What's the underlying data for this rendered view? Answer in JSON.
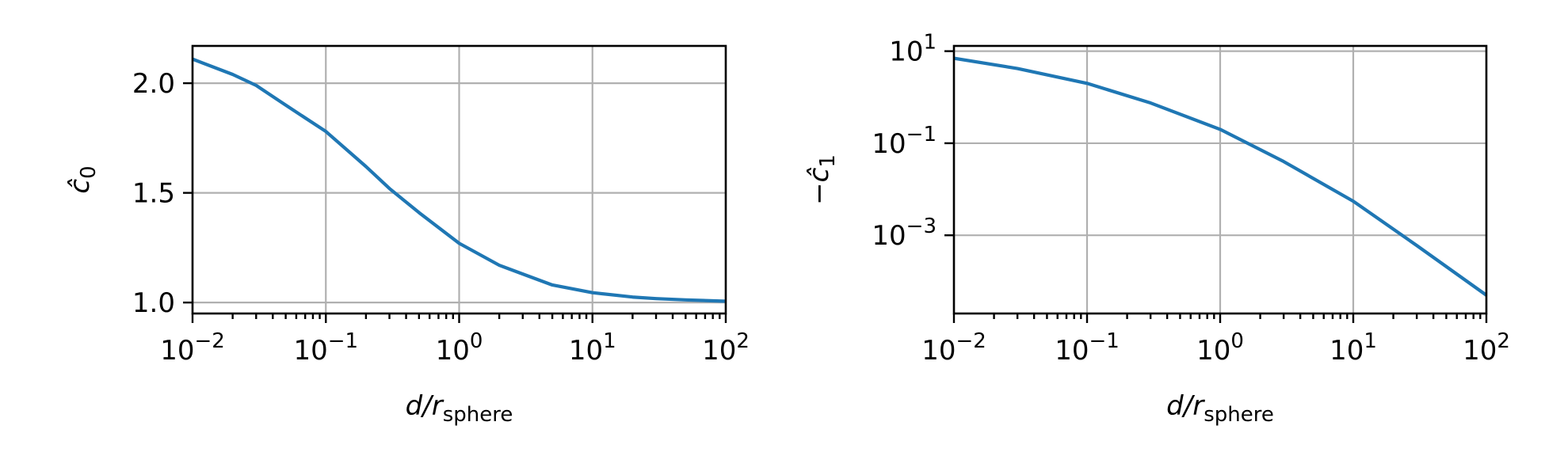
{
  "colors": {
    "series": "#1f77b4",
    "grid": "#b0b0b0",
    "frame": "#000000"
  },
  "chart_data": [
    {
      "type": "line",
      "xscale": "log",
      "yscale": "linear",
      "xlim": [
        0.01,
        100
      ],
      "ylim": [
        0.95,
        2.17
      ],
      "grid": true,
      "xlabel": {
        "base": "d/r",
        "sub": "sphere"
      },
      "ylabel": {
        "base": "ĉ",
        "sub": "0",
        "prefix": ""
      },
      "xticks": [
        {
          "value": 0.01,
          "base": "10",
          "exp": "−2"
        },
        {
          "value": 0.1,
          "base": "10",
          "exp": "−1"
        },
        {
          "value": 1,
          "base": "10",
          "exp": "0"
        },
        {
          "value": 10,
          "base": "10",
          "exp": "1"
        },
        {
          "value": 100,
          "base": "10",
          "exp": "2"
        }
      ],
      "yticks": [
        {
          "value": 1.0,
          "label": "1.0"
        },
        {
          "value": 1.5,
          "label": "1.5"
        },
        {
          "value": 2.0,
          "label": "2.0"
        }
      ],
      "series": [
        {
          "x": [
            0.01,
            0.02,
            0.03,
            0.05,
            0.1,
            0.2,
            0.3,
            0.5,
            1,
            2,
            3,
            5,
            10,
            20,
            30,
            50,
            100
          ],
          "y": [
            2.11,
            2.04,
            1.99,
            1.9,
            1.78,
            1.62,
            1.52,
            1.41,
            1.27,
            1.17,
            1.13,
            1.08,
            1.045,
            1.025,
            1.018,
            1.012,
            1.006
          ]
        }
      ]
    },
    {
      "type": "line",
      "xscale": "log",
      "yscale": "log",
      "xlim": [
        0.01,
        100
      ],
      "ylim": [
        2e-05,
        13
      ],
      "grid": true,
      "xlabel": {
        "base": "d/r",
        "sub": "sphere"
      },
      "ylabel": {
        "base": "ĉ",
        "sub": "1",
        "prefix": "−"
      },
      "xticks": [
        {
          "value": 0.01,
          "base": "10",
          "exp": "−2"
        },
        {
          "value": 0.1,
          "base": "10",
          "exp": "−1"
        },
        {
          "value": 1,
          "base": "10",
          "exp": "0"
        },
        {
          "value": 10,
          "base": "10",
          "exp": "1"
        },
        {
          "value": 100,
          "base": "10",
          "exp": "2"
        }
      ],
      "yticks": [
        {
          "value": 0.001,
          "base": "10",
          "exp": "−3"
        },
        {
          "value": 0.1,
          "base": "10",
          "exp": "−1"
        },
        {
          "value": 10,
          "base": "10",
          "exp": "1"
        }
      ],
      "series": [
        {
          "x": [
            0.01,
            0.03,
            0.1,
            0.3,
            1,
            3,
            10,
            30,
            100
          ],
          "y": [
            7.0,
            4.2,
            2.0,
            0.75,
            0.2,
            0.04,
            0.0055,
            0.0006,
            5e-05
          ]
        }
      ]
    }
  ]
}
